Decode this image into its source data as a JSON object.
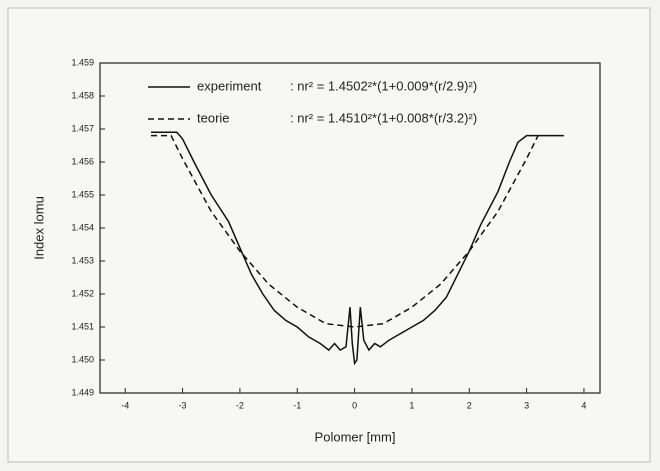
{
  "chart_data": {
    "type": "line",
    "xlabel": "Polomer [mm]",
    "ylabel": "Index lomu",
    "xlim": [
      -4.44,
      4.28
    ],
    "xticks": [
      -4,
      -3,
      -2,
      -1,
      0,
      1,
      2,
      3,
      4
    ],
    "ylim": [
      1.449,
      1.459
    ],
    "yticks": [
      1.449,
      {
        "value": 1.45,
        "label": "1.450"
      },
      1.451,
      1.452,
      1.453,
      1.454,
      1.455,
      1.456,
      1.457,
      1.458,
      1.459
    ],
    "legend": "top-left",
    "series": [
      {
        "name": "experiment",
        "color": "#111111",
        "dash": "solid",
        "formula": ": nr² = 1.4502²*(1+0.009*(r/2.9)²)",
        "x": [
          -3.55,
          -3.1,
          -3.0,
          -2.8,
          -2.5,
          -2.2,
          -2.0,
          -1.8,
          -1.6,
          -1.4,
          -1.2,
          -1.0,
          -0.8,
          -0.6,
          -0.45,
          -0.35,
          -0.25,
          -0.15,
          -0.08,
          -0.04,
          0,
          0.04,
          0.1,
          0.16,
          0.25,
          0.35,
          0.45,
          0.6,
          0.8,
          1.0,
          1.2,
          1.4,
          1.6,
          1.8,
          2.0,
          2.2,
          2.5,
          2.7,
          2.85,
          3.0,
          3.65
        ],
        "values": [
          1.4569,
          1.4569,
          1.4567,
          1.456,
          1.455,
          1.4542,
          1.4534,
          1.4526,
          1.452,
          1.4515,
          1.4512,
          1.451,
          1.4507,
          1.4505,
          1.4503,
          1.4505,
          1.4503,
          1.4504,
          1.4516,
          1.4505,
          1.4499,
          1.45,
          1.4516,
          1.4506,
          1.4503,
          1.4505,
          1.4504,
          1.4506,
          1.4508,
          1.451,
          1.4512,
          1.4515,
          1.4519,
          1.4526,
          1.4533,
          1.4541,
          1.4551,
          1.456,
          1.4566,
          1.4568,
          1.4568
        ]
      },
      {
        "name": "teorie",
        "color": "#111111",
        "dash": "dashed",
        "formula": ": nr² = 1.4510²*(1+0.008*(r/3.2)²)",
        "x": [
          -3.55,
          -3.2,
          -3.0,
          -2.5,
          -2.0,
          -1.5,
          -1.0,
          -0.5,
          0,
          0.5,
          1.0,
          1.5,
          2.0,
          2.5,
          3.0,
          3.2
        ],
        "values": [
          1.4568,
          1.4568,
          1.4561,
          1.4545,
          1.4533,
          1.4523,
          1.4516,
          1.4511,
          1.451,
          1.4511,
          1.4516,
          1.4523,
          1.4533,
          1.4545,
          1.4561,
          1.4568
        ]
      }
    ]
  }
}
